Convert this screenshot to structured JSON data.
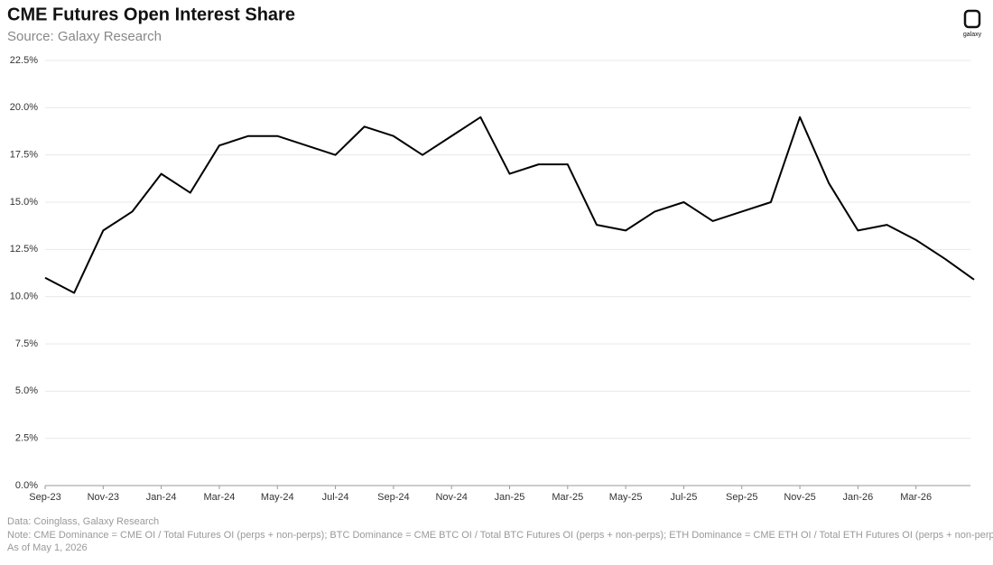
{
  "chart_data": {
    "type": "line",
    "title": "CME Futures Open Interest Share",
    "subtitle": "Source: Galaxy Research",
    "brand": "galaxy",
    "footnotes": [
      "Data: Coinglass, Galaxy Research",
      "Note: CME Dominance = CME OI / Total Futures OI (perps + non-perps); BTC Dominance = CME BTC OI / Total BTC Futures OI (perps + non-perps); ETH Dominance = CME ETH OI / Total ETH Futures OI (perps + non-perps)",
      "As of May 1, 2026"
    ],
    "x": [
      "2023-09",
      "2023-10",
      "2023-11",
      "2023-12",
      "2024-01",
      "2024-02",
      "2024-03",
      "2024-04",
      "2024-05",
      "2024-06",
      "2024-07",
      "2024-08",
      "2024-09",
      "2024-10",
      "2024-11",
      "2024-12",
      "2025-01",
      "2025-02",
      "2025-03",
      "2025-04",
      "2025-05",
      "2025-06",
      "2025-07",
      "2025-08",
      "2025-09",
      "2025-10",
      "2025-11",
      "2025-12",
      "2026-01",
      "2026-02",
      "2026-03",
      "2026-04",
      "2026-05"
    ],
    "series": [
      {
        "name": "CME Dominance",
        "color": "#000000",
        "values": [
          11.0,
          10.2,
          13.5,
          14.5,
          16.5,
          15.5,
          18.0,
          18.5,
          18.5,
          18.0,
          17.5,
          19.0,
          18.5,
          17.5,
          18.5,
          19.5,
          16.5,
          17.0,
          17.0,
          13.8,
          13.5,
          14.5,
          15.0,
          14.0,
          14.5,
          15.0,
          19.5,
          16.0,
          13.5,
          13.8,
          13.0,
          12.0,
          10.9
        ]
      }
    ],
    "xlim": [
      "2023-09",
      "2026-05"
    ],
    "xticks": [
      {
        "value": "2023-09",
        "label": "Sep-23"
      },
      {
        "value": "2023-11",
        "label": "Nov-23"
      },
      {
        "value": "2024-01",
        "label": "Jan-24"
      },
      {
        "value": "2024-03",
        "label": "Mar-24"
      },
      {
        "value": "2024-05",
        "label": "May-24"
      },
      {
        "value": "2024-07",
        "label": "Jul-24"
      },
      {
        "value": "2024-09",
        "label": "Sep-24"
      },
      {
        "value": "2024-11",
        "label": "Nov-24"
      },
      {
        "value": "2025-01",
        "label": "Jan-25"
      },
      {
        "value": "2025-03",
        "label": "Mar-25"
      },
      {
        "value": "2025-05",
        "label": "May-25"
      },
      {
        "value": "2025-07",
        "label": "Jul-25"
      },
      {
        "value": "2025-09",
        "label": "Sep-25"
      },
      {
        "value": "2025-11",
        "label": "Nov-25"
      },
      {
        "value": "2026-01",
        "label": "Jan-26"
      },
      {
        "value": "2026-03",
        "label": "Mar-26"
      }
    ],
    "ylim": [
      0,
      22.5
    ],
    "yticks": [
      {
        "value": 0,
        "label": "0.0%"
      },
      {
        "value": 2.5,
        "label": "2.5%"
      },
      {
        "value": 5,
        "label": "5.0%"
      },
      {
        "value": 7.5,
        "label": "7.5%"
      },
      {
        "value": 10,
        "label": "10.0%"
      },
      {
        "value": 12.5,
        "label": "12.5%"
      },
      {
        "value": 15,
        "label": "15.0%"
      },
      {
        "value": 17.5,
        "label": "17.5%"
      },
      {
        "value": 20,
        "label": "20.0%"
      },
      {
        "value": 22.5,
        "label": "22.5%"
      }
    ],
    "grid": true
  }
}
